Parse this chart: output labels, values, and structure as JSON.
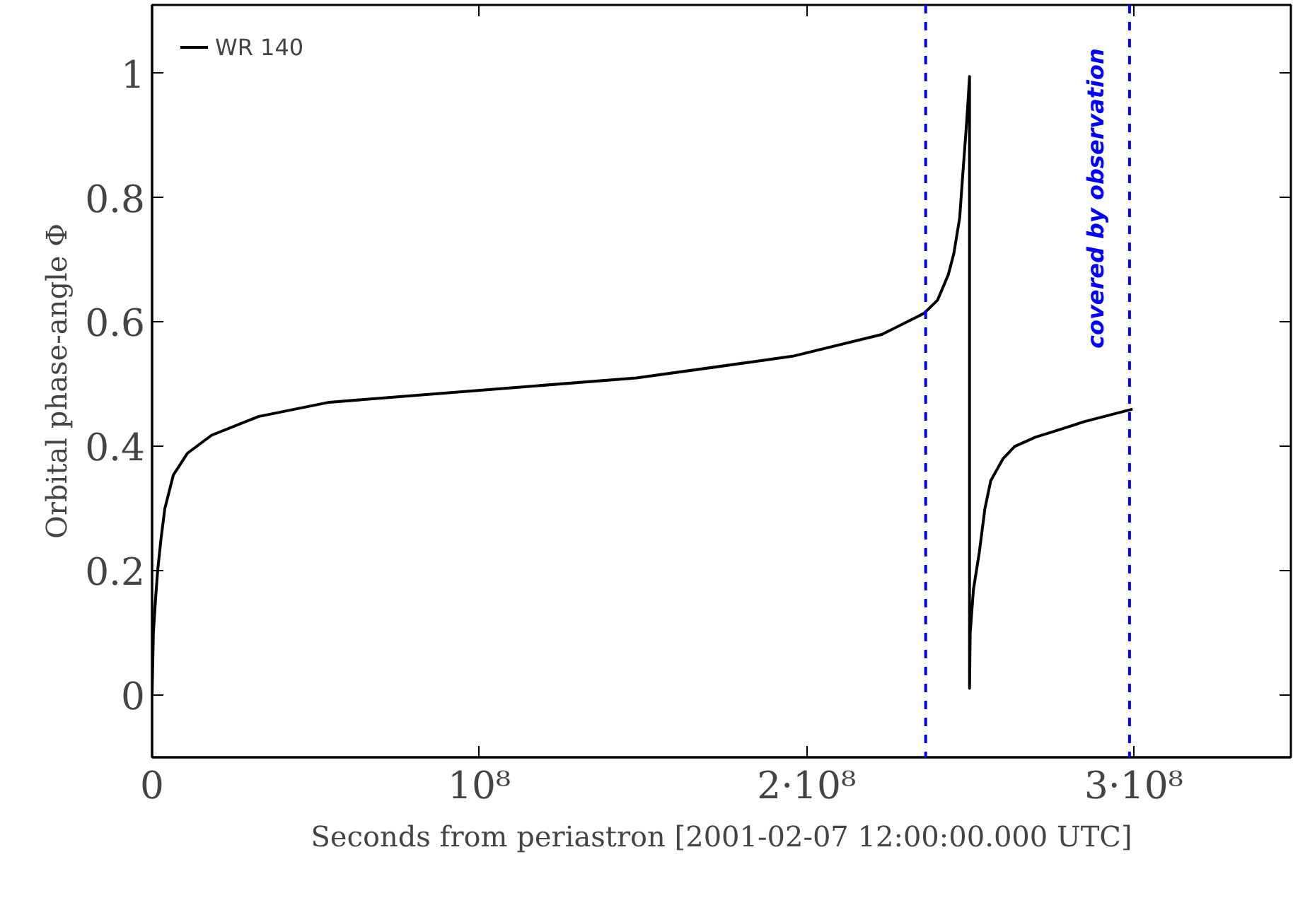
{
  "chart_data": {
    "type": "line",
    "xlabel": "Seconds from periastron [2001-02-07 12:00:00.000 UTC]",
    "ylabel": "Orbital phase-angle Φ",
    "series": [
      {
        "name": "WR 140",
        "color": "#000000",
        "x": [
          0,
          400000,
          1000000,
          1700000,
          2700000,
          3900000,
          6500000,
          10800000,
          18200000,
          32500000,
          54100000,
          83100000,
          109100000,
          148000000,
          195700000,
          223000000,
          235900000,
          240000000,
          243300000,
          245000000,
          246800000,
          247500000,
          248900000,
          249400000,
          249800000,
          249800000,
          250000000,
          251000000,
          252800000,
          254500000,
          256300000,
          260000000,
          263600000,
          270000000,
          274900000,
          285000000,
          299600000
        ],
        "values": [
          0,
          0.1,
          0.15,
          0.2,
          0.25,
          0.3,
          0.354,
          0.389,
          0.418,
          0.448,
          0.471,
          0.483,
          0.494,
          0.51,
          0.545,
          0.58,
          0.614,
          0.635,
          0.676,
          0.71,
          0.768,
          0.82,
          0.92,
          0.96,
          0.995,
          0.011,
          0.1,
          0.17,
          0.23,
          0.3,
          0.345,
          0.38,
          0.4,
          0.415,
          0.423,
          0.44,
          0.46
        ]
      }
    ],
    "xlim": [
      0,
      348000000
    ],
    "ylim": [
      -0.1,
      1.11
    ],
    "xticks": [
      0,
      {
        "value": 100000000,
        "label": "10⁸"
      },
      {
        "value": 200000000,
        "label": "2·10⁸"
      },
      {
        "value": 300000000,
        "label": "3·10⁸"
      }
    ],
    "yticks": [
      0,
      0.2,
      0.4,
      0.6,
      0.8,
      1
    ],
    "ref_lines": [
      {
        "axis": "x",
        "value": 236400000,
        "color": "#0000ff",
        "line_style": "dashed"
      },
      {
        "axis": "x",
        "value": 298700000,
        "color": "#0000ff",
        "line_style": "dashed"
      }
    ],
    "annotations": [
      "covered by observation"
    ],
    "legend": "top left",
    "grid": false,
    "marker": "none",
    "line_style": "solid"
  }
}
